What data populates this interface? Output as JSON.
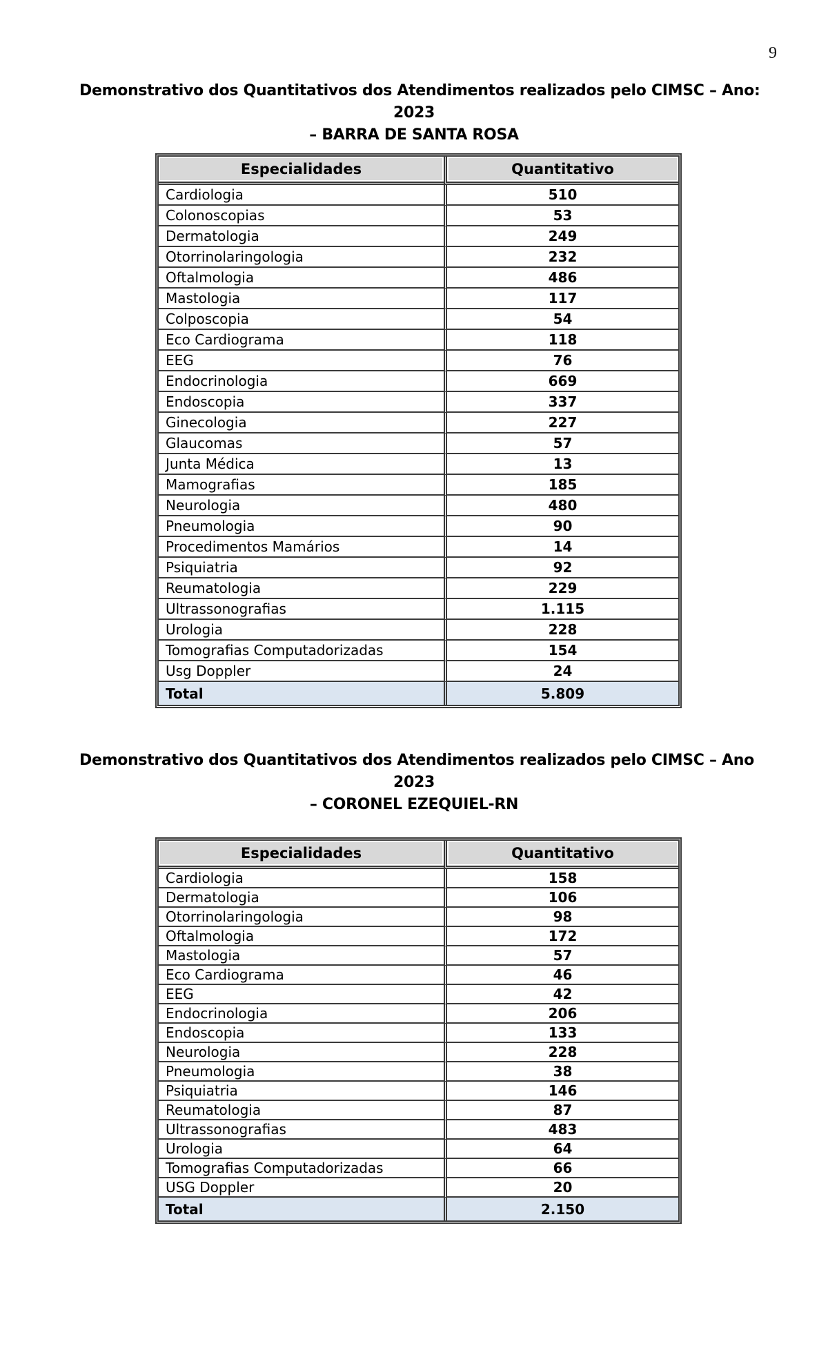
{
  "page": {
    "number": "9"
  },
  "colors": {
    "header_bg": "#d8d8d8",
    "total_bg": "#dbe5f1",
    "border": "#3a3a3a"
  },
  "sections": [
    {
      "title_lines": [
        "Demonstrativo dos Quantitativos dos Atendimentos realizados pelo CIMSC – Ano:",
        "2023",
        "– BARRA DE SANTA ROSA"
      ],
      "table": {
        "columns": [
          "Especialidades",
          "Quantitativo"
        ],
        "rows": [
          [
            "Cardiologia",
            "510"
          ],
          [
            "Colonoscopias",
            "53"
          ],
          [
            "Dermatologia",
            "249"
          ],
          [
            "Otorrinolaringologia",
            "232"
          ],
          [
            "Oftalmologia",
            "486"
          ],
          [
            "Mastologia",
            "117"
          ],
          [
            "Colposcopia",
            "54"
          ],
          [
            "Eco Cardiograma",
            "118"
          ],
          [
            "EEG",
            "76"
          ],
          [
            "Endocrinologia",
            "669"
          ],
          [
            "Endoscopia",
            "337"
          ],
          [
            "Ginecologia",
            "227"
          ],
          [
            "Glaucomas",
            "57"
          ],
          [
            "Junta Médica",
            "13"
          ],
          [
            "Mamografias",
            "185"
          ],
          [
            "Neurologia",
            "480"
          ],
          [
            "Pneumologia",
            "90"
          ],
          [
            "Procedimentos Mamários",
            "14"
          ],
          [
            "Psiquiatria",
            "92"
          ],
          [
            "Reumatologia",
            "229"
          ],
          [
            "Ultrassonografias",
            "1.115"
          ],
          [
            "Urologia",
            "228"
          ],
          [
            "Tomografias Computadorizadas",
            "154"
          ],
          [
            "Usg Doppler",
            "24"
          ]
        ],
        "total_label": "Total",
        "total_value": "5.809"
      }
    },
    {
      "title_lines": [
        "Demonstrativo dos Quantitativos dos Atendimentos realizados pelo CIMSC – Ano",
        "2023",
        "– CORONEL EZEQUIEL-RN"
      ],
      "table": {
        "columns": [
          "Especialidades",
          "Quantitativo"
        ],
        "rows": [
          [
            "Cardiologia",
            "158"
          ],
          [
            "Dermatologia",
            "106"
          ],
          [
            "Otorrinolaringologia",
            "98"
          ],
          [
            "Oftalmologia",
            "172"
          ],
          [
            "Mastologia",
            "57"
          ],
          [
            "Eco Cardiograma",
            "46"
          ],
          [
            "EEG",
            "42"
          ],
          [
            "Endocrinologia",
            "206"
          ],
          [
            "Endoscopia",
            "133"
          ],
          [
            "Neurologia",
            "228"
          ],
          [
            "Pneumologia",
            "38"
          ],
          [
            "Psiquiatria",
            "146"
          ],
          [
            "Reumatologia",
            "87"
          ],
          [
            "Ultrassonografias",
            "483"
          ],
          [
            "Urologia",
            "64"
          ],
          [
            "Tomografias Computadorizadas",
            "66"
          ],
          [
            "USG Doppler",
            "20"
          ]
        ],
        "total_label": "Total",
        "total_value": "2.150"
      }
    }
  ]
}
